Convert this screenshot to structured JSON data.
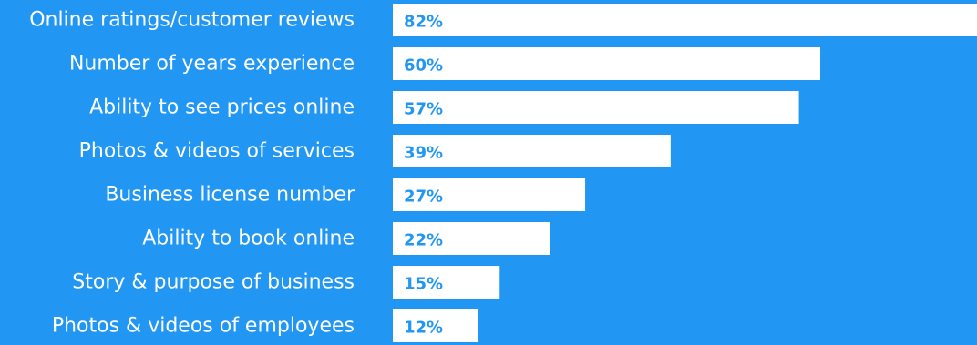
{
  "colors": {
    "background": "#2196f3",
    "bar": "#ffffff",
    "category_text": "#ffffff",
    "value_text": "#2196f3"
  },
  "chart_data": {
    "type": "bar",
    "orientation": "horizontal",
    "categories": [
      "Online ratings/customer reviews",
      "Number of years experience",
      "Ability to see prices online",
      "Photos & videos of services",
      "Business license number",
      "Ability to book online",
      "Story & purpose of business",
      "Photos & videos of employees"
    ],
    "values": [
      82,
      60,
      57,
      39,
      27,
      22,
      15,
      12
    ],
    "value_labels": [
      "82%",
      "60%",
      "57%",
      "39%",
      "27%",
      "22%",
      "15%",
      "12%"
    ],
    "unit": "%",
    "xlim": [
      0,
      82
    ],
    "grid": false,
    "legend": "none"
  }
}
